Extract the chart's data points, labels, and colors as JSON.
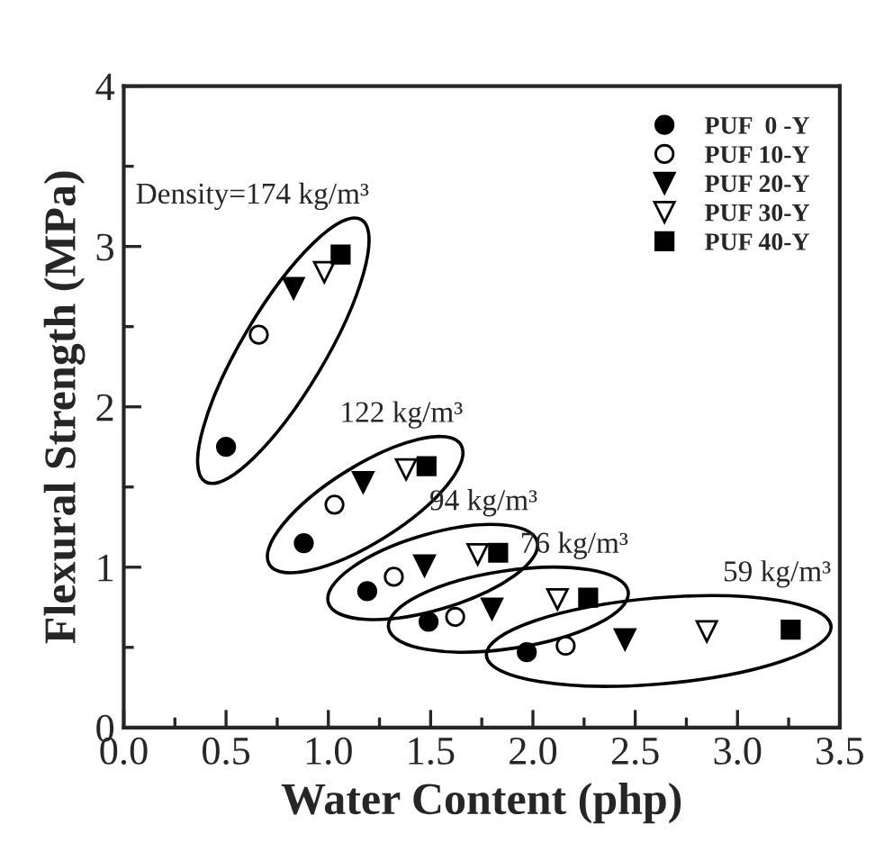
{
  "chart_data": {
    "type": "scatter",
    "xlabel": "Water Content (php)",
    "ylabel": "Flexural Strength (MPa)",
    "xlim": [
      0.0,
      3.5
    ],
    "ylim": [
      0,
      4
    ],
    "xticks": [
      {
        "value": 0.0,
        "label": "0.0"
      },
      {
        "value": 0.25,
        "label": null
      },
      {
        "value": 0.5,
        "label": "0.5"
      },
      {
        "value": 0.75,
        "label": null
      },
      {
        "value": 1.0,
        "label": "1.0"
      },
      {
        "value": 1.25,
        "label": null
      },
      {
        "value": 1.5,
        "label": "1.5"
      },
      {
        "value": 1.75,
        "label": null
      },
      {
        "value": 2.0,
        "label": "2.0"
      },
      {
        "value": 2.25,
        "label": null
      },
      {
        "value": 2.5,
        "label": "2.5"
      },
      {
        "value": 2.75,
        "label": null
      },
      {
        "value": 3.0,
        "label": "3.0"
      },
      {
        "value": 3.25,
        "label": null
      },
      {
        "value": 3.5,
        "label": "3.5"
      }
    ],
    "yticks": [
      0,
      {
        "value": 0.5,
        "label": null
      },
      1,
      {
        "value": 1.5,
        "label": null
      },
      2,
      {
        "value": 2.5,
        "label": null
      },
      3,
      {
        "value": 3.5,
        "label": null
      },
      4
    ],
    "legend": "top right",
    "grid": false,
    "series": [
      {
        "name": "PUF  0 -Y",
        "color": "#000000",
        "marker": "circle",
        "x": [
          0.5,
          0.88,
          1.19,
          1.49,
          1.97
        ],
        "values": [
          1.75,
          1.15,
          0.85,
          0.66,
          0.47
        ]
      },
      {
        "name": "PUF 10-Y",
        "color": "#000000",
        "marker": "circle",
        "x": [
          0.66,
          1.03,
          1.32,
          1.62,
          2.16
        ],
        "values": [
          2.45,
          1.39,
          0.94,
          0.69,
          0.51
        ]
      },
      {
        "name": "PUF 20-Y",
        "color": "#000000",
        "marker": "triangle",
        "x": [
          0.83,
          1.17,
          1.47,
          1.8,
          2.45
        ],
        "values": [
          2.74,
          1.53,
          1.01,
          0.74,
          0.55
        ]
      },
      {
        "name": "PUF 30-Y",
        "color": "#000000",
        "marker": "triangle",
        "x": [
          0.98,
          1.38,
          1.73,
          2.12,
          2.85
        ],
        "values": [
          2.84,
          1.61,
          1.08,
          0.8,
          0.6
        ]
      },
      {
        "name": "PUF 40-Y",
        "color": "#000000",
        "marker": "square",
        "x": [
          1.06,
          1.48,
          1.83,
          2.27,
          3.26
        ],
        "values": [
          2.95,
          1.63,
          1.09,
          0.81,
          0.61
        ]
      }
    ],
    "annotations": [
      "Density=174 kg/m³",
      "122 kg/m³",
      "94 kg/m³",
      "76 kg/m³",
      "59 kg/m³"
    ]
  }
}
